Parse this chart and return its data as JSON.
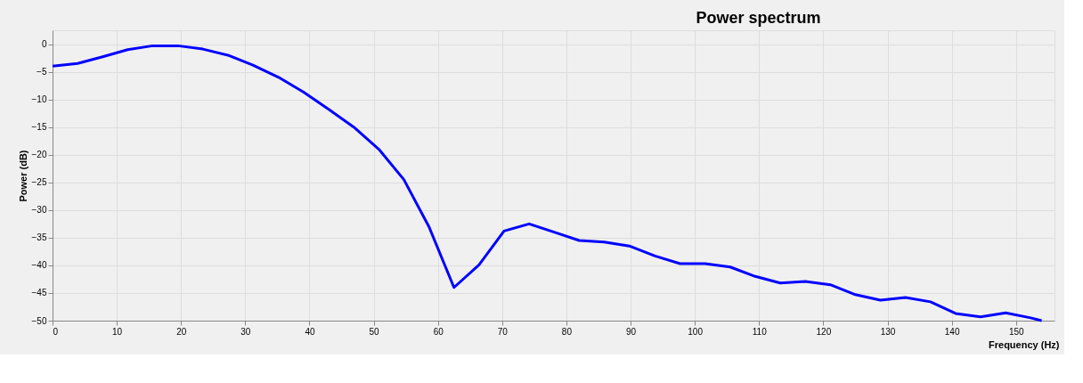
{
  "chart_data": {
    "type": "line",
    "title": "Power spectrum",
    "xlabel": "Frequency (Hz)",
    "ylabel": "Power (dB)",
    "x": [
      0,
      3.9,
      7.8,
      11.7,
      15.6,
      19.5,
      23.4,
      27.3,
      31.2,
      35.2,
      39.1,
      43,
      46.9,
      50.8,
      54.7,
      58.6,
      62.5,
      66.4,
      70.3,
      74.2,
      78.1,
      82,
      85.9,
      89.8,
      93.8,
      97.7,
      101.6,
      105.5,
      109.4,
      113.3,
      117.2,
      121.1,
      125,
      128.9,
      132.8,
      136.7,
      140.6,
      144.5,
      148.4,
      152.3,
      154
    ],
    "series": [
      {
        "color": "#0000ff",
        "values": [
          -4,
          -3.5,
          -2.3,
          -1,
          -0.3,
          -0.3,
          -0.9,
          -2,
          -3.8,
          -6,
          -8.7,
          -11.8,
          -15,
          -19,
          -24.5,
          -33,
          -44,
          -39.9,
          -33.8,
          -32.5,
          -34,
          -35.5,
          -35.8,
          -36.5,
          -38.3,
          -39.7,
          -39.7,
          -40.3,
          -42,
          -43.2,
          -42.9,
          -43.5,
          -45.3,
          -46.3,
          -45.8,
          -46.6,
          -48.7,
          -49.3,
          -48.6,
          -49.5,
          -50
        ]
      }
    ],
    "xlim": [
      0,
      156
    ],
    "xticks": [
      0,
      10,
      20,
      30,
      40,
      50,
      60,
      70,
      80,
      90,
      100,
      110,
      120,
      130,
      140,
      150
    ],
    "ylim": [
      -50,
      2.5
    ],
    "yticks": [
      0,
      -5,
      -10,
      -15,
      -20,
      -25,
      -30,
      -35,
      -40,
      -45,
      -50
    ],
    "grid": true,
    "legend": false,
    "marker": "none",
    "line_style": "solid"
  }
}
